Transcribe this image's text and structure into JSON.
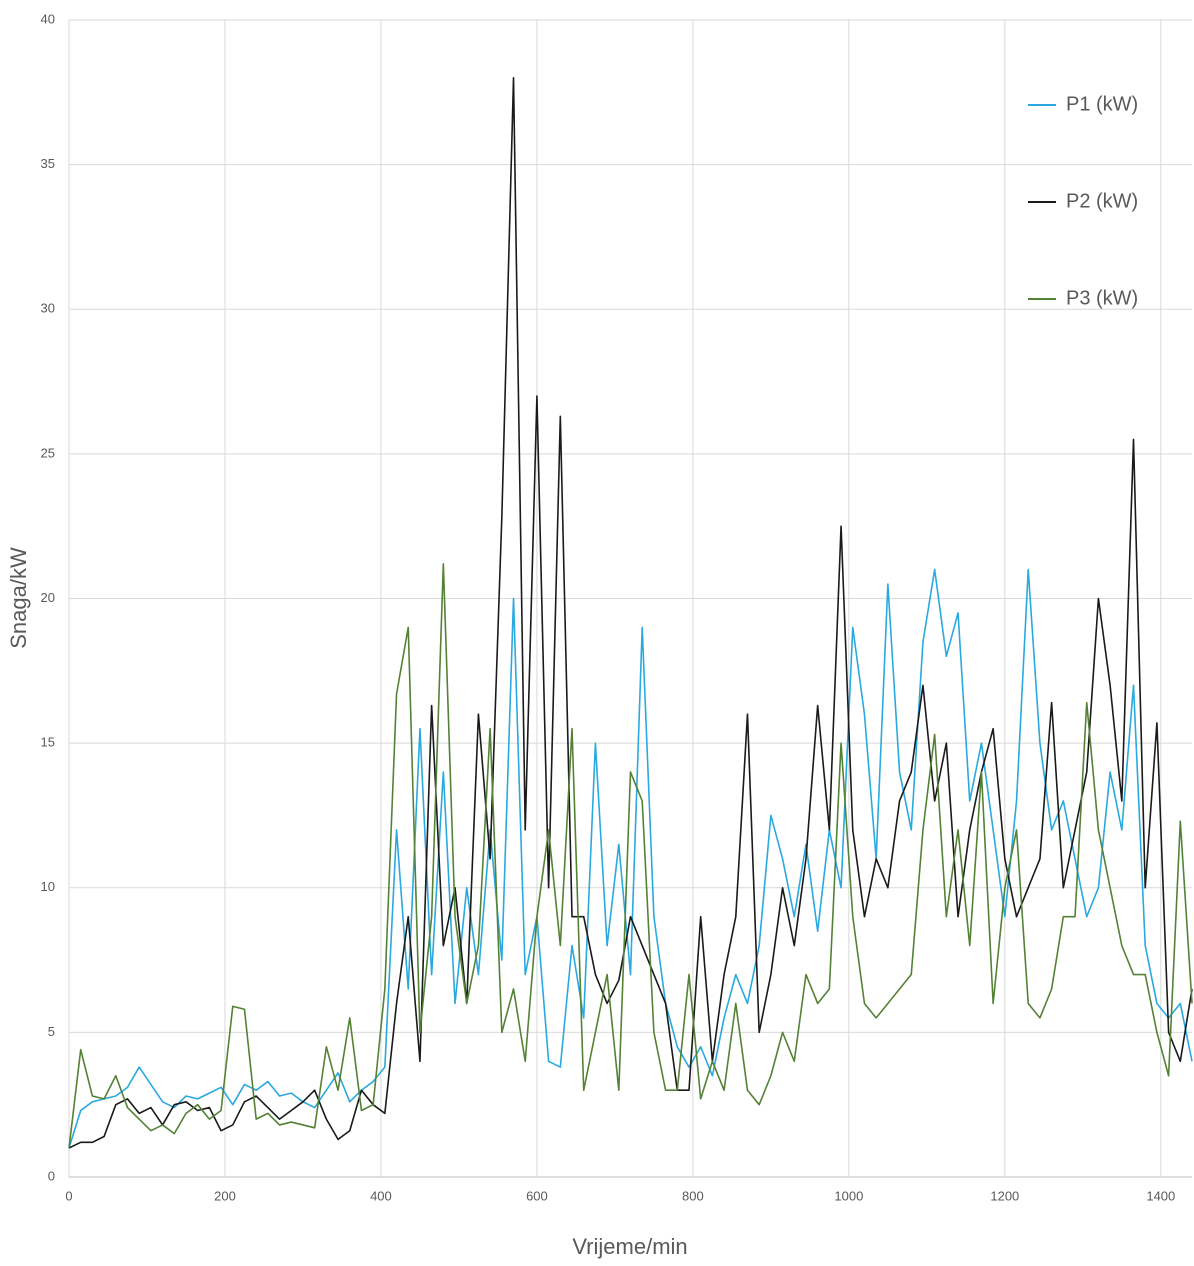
{
  "chart_data": {
    "type": "line",
    "x_label": "Vrijeme/min",
    "y_label": "Snaga/kW",
    "x": [
      0,
      15,
      30,
      45,
      60,
      75,
      90,
      105,
      120,
      135,
      150,
      165,
      180,
      195,
      210,
      225,
      240,
      255,
      270,
      285,
      300,
      315,
      330,
      345,
      360,
      375,
      390,
      405,
      420,
      435,
      450,
      465,
      480,
      495,
      510,
      525,
      540,
      555,
      570,
      585,
      600,
      615,
      630,
      645,
      660,
      675,
      690,
      705,
      720,
      735,
      750,
      765,
      780,
      795,
      810,
      825,
      840,
      855,
      870,
      885,
      900,
      915,
      930,
      945,
      960,
      975,
      990,
      1005,
      1020,
      1035,
      1050,
      1065,
      1080,
      1095,
      1110,
      1125,
      1140,
      1155,
      1170,
      1185,
      1200,
      1215,
      1230,
      1245,
      1260,
      1275,
      1290,
      1305,
      1320,
      1335,
      1350,
      1365,
      1380,
      1395,
      1410,
      1425,
      1440
    ],
    "series": [
      {
        "name": "P1 (kW)",
        "color": "#29a9e0",
        "values": [
          1,
          2.3,
          2.6,
          2.7,
          2.8,
          3.1,
          3.8,
          3.2,
          2.6,
          2.4,
          2.8,
          2.7,
          2.9,
          3.1,
          2.5,
          3.2,
          3.0,
          3.3,
          2.8,
          2.9,
          2.6,
          2.4,
          3.0,
          3.6,
          2.6,
          3.0,
          3.3,
          3.8,
          12,
          6.5,
          15.5,
          7,
          14,
          6,
          10,
          7,
          12,
          7.5,
          20,
          7,
          9,
          4,
          3.8,
          8,
          5.5,
          15,
          8,
          11.5,
          7,
          19,
          9,
          6,
          4.5,
          3.8,
          4.5,
          3.5,
          5.5,
          7,
          6,
          8,
          12.5,
          11,
          9,
          11.5,
          8.5,
          12,
          10,
          19,
          16,
          11,
          20.5,
          14,
          12,
          18.5,
          21,
          18,
          19.5,
          13,
          15,
          12,
          9,
          13,
          21,
          15,
          12,
          13,
          11,
          9,
          10,
          14,
          12,
          17,
          8,
          6,
          5.5,
          6,
          4
        ]
      },
      {
        "name": "P2 (kW)",
        "color": "#1a1a1a",
        "values": [
          1,
          1.2,
          1.2,
          1.4,
          2.5,
          2.7,
          2.2,
          2.4,
          1.8,
          2.5,
          2.6,
          2.3,
          2.4,
          1.6,
          1.8,
          2.6,
          2.8,
          2.4,
          2.0,
          2.3,
          2.6,
          3.0,
          2.0,
          1.3,
          1.6,
          3.0,
          2.5,
          2.2,
          6,
          9,
          4,
          16.3,
          8,
          10,
          6,
          16,
          11,
          22.8,
          38,
          12,
          27,
          10,
          26.3,
          9,
          9,
          7,
          6,
          6.8,
          9,
          8,
          7,
          6,
          3,
          3,
          9,
          4,
          7,
          9,
          16,
          5,
          7,
          10,
          8,
          11,
          16.3,
          12,
          22.5,
          12,
          9,
          11,
          10,
          13,
          14,
          17,
          13,
          15,
          9,
          12,
          14,
          15.5,
          11,
          9,
          10,
          11,
          16.4,
          10,
          12,
          14,
          20,
          17,
          13,
          25.5,
          10,
          15.7,
          5,
          4,
          6.5
        ]
      },
      {
        "name": "P3 (kW)",
        "color": "#548235",
        "values": [
          1,
          4.4,
          2.8,
          2.7,
          3.5,
          2.4,
          2.0,
          1.6,
          1.8,
          1.5,
          2.2,
          2.5,
          2.0,
          2.3,
          5.9,
          5.8,
          2.0,
          2.2,
          1.8,
          1.9,
          1.8,
          1.7,
          4.5,
          3.0,
          5.5,
          2.3,
          2.5,
          6.5,
          16.7,
          19,
          5,
          9,
          21.2,
          9,
          6,
          8,
          15.5,
          5,
          6.5,
          4,
          9,
          12,
          8,
          15.5,
          3,
          5,
          7,
          3,
          14,
          13,
          5,
          3,
          3,
          7,
          2.7,
          4,
          3,
          6,
          3,
          2.5,
          3.5,
          5,
          4,
          7,
          6,
          6.5,
          15,
          9,
          6,
          5.5,
          6,
          6.5,
          7,
          12,
          15.3,
          9,
          12,
          8,
          14,
          6,
          10,
          12,
          6,
          5.5,
          6.5,
          9,
          9,
          16.4,
          12,
          10,
          8,
          7,
          7,
          5,
          3.5,
          12.3,
          6
        ]
      }
    ],
    "xlim": [
      0,
      1440
    ],
    "xticks": [
      0,
      200,
      400,
      600,
      800,
      1000,
      1200,
      1400
    ],
    "ylim": [
      0,
      40
    ],
    "yticks": [
      0,
      5,
      10,
      15,
      20,
      25,
      30,
      35,
      40
    ],
    "grid": true,
    "legend": "top-right"
  }
}
